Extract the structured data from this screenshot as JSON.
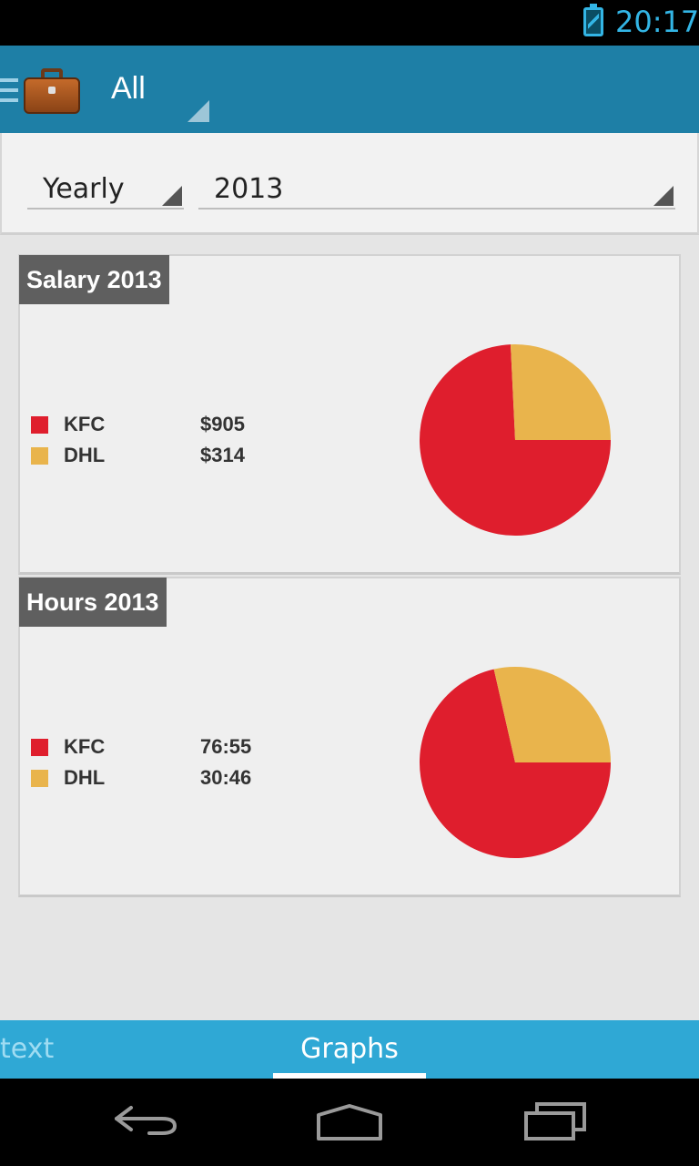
{
  "status_bar": {
    "time": "20:17",
    "battery_icon": "battery-charging-icon",
    "accent_color": "#33b5e5"
  },
  "action_bar": {
    "title": "All",
    "menu_icon": "hamburger-icon",
    "app_icon": "briefcase-icon",
    "background_color": "#1e7fa6"
  },
  "filters": {
    "period": "Yearly",
    "year": "2013"
  },
  "salary_card": {
    "title": "Salary 2013",
    "items": [
      {
        "label": "KFC",
        "value": "$905",
        "color": "#df1e2d"
      },
      {
        "label": "DHL",
        "value": "$314",
        "color": "#e9b44c"
      }
    ]
  },
  "hours_card": {
    "title": "Hours 2013",
    "items": [
      {
        "label": "KFC",
        "value": "76:55",
        "color": "#df1e2d"
      },
      {
        "label": "DHL",
        "value": "30:46",
        "color": "#e9b44c"
      }
    ]
  },
  "chart_data": [
    {
      "type": "pie",
      "title": "Salary 2013",
      "categories": [
        "KFC",
        "DHL"
      ],
      "values": [
        905,
        314
      ],
      "colors": [
        "#df1e2d",
        "#e9b44c"
      ]
    },
    {
      "type": "pie",
      "title": "Hours 2013",
      "categories": [
        "KFC",
        "DHL"
      ],
      "values": [
        76.9167,
        30.7667
      ],
      "colors": [
        "#df1e2d",
        "#e9b44c"
      ]
    }
  ],
  "tabs": [
    {
      "label": "text",
      "selected": false
    },
    {
      "label": "Graphs",
      "selected": true
    }
  ],
  "system_nav": {
    "back_icon": "back-icon",
    "home_icon": "home-icon",
    "recents_icon": "recents-icon"
  }
}
